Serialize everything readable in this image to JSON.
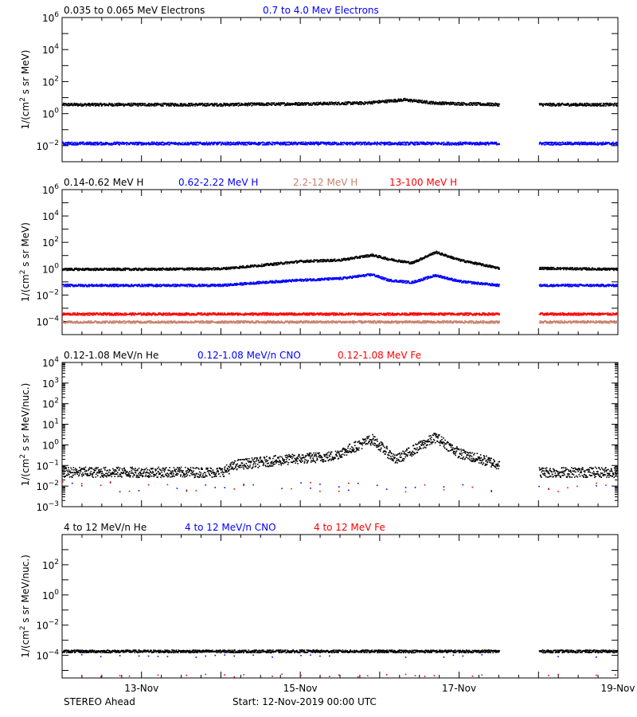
{
  "footer": {
    "mission": "STEREO Ahead",
    "start": "Start: 12-Nov-2019 00:00 UTC"
  },
  "x_axis": {
    "tick_labels": [
      "13-Nov",
      "15-Nov",
      "17-Nov",
      "19-Nov"
    ],
    "tick_days": [
      1,
      3,
      5,
      7
    ],
    "range_days": [
      0,
      7
    ],
    "data_gap_days": [
      5.5,
      6.0
    ]
  },
  "colors": {
    "black": "#000000",
    "blue": "#0000ff",
    "salmon": "#c8826e",
    "red": "#ff0000"
  },
  "chart_data": [
    {
      "type": "scatter",
      "ylabel": "1/(cm^2 s sr MeV)",
      "yscale": "log",
      "ylim_exp": [
        -3,
        6
      ],
      "ytick_exps": [
        -2,
        0,
        2,
        4,
        6
      ],
      "legend": [
        {
          "name": "0.035 to 0.065 MeV Electrons",
          "color": "#000000"
        },
        {
          "name": "0.7 to 4.0 Mev Electrons",
          "color": "#0000ff"
        }
      ],
      "series": [
        {
          "name": "0.035 to 0.065 MeV Electrons",
          "color": "#000000",
          "x": [
            0,
            1,
            2,
            3,
            3.8,
            4.3,
            4.7,
            5.5,
            6.0,
            7
          ],
          "y": [
            4,
            4,
            4,
            4.5,
            5,
            8,
            5,
            4,
            4,
            4
          ]
        },
        {
          "name": "0.7 to 4.0 Mev Electrons",
          "color": "#0000ff",
          "x": [
            0,
            1,
            2,
            3,
            4,
            5,
            5.5,
            6.0,
            7
          ],
          "y": [
            0.015,
            0.015,
            0.015,
            0.015,
            0.015,
            0.015,
            0.015,
            0.015,
            0.015
          ]
        }
      ]
    },
    {
      "type": "scatter",
      "ylabel": "1/(cm^2 s sr MeV)",
      "yscale": "log",
      "ylim_exp": [
        -5,
        6
      ],
      "ytick_exps": [
        -4,
        -2,
        0,
        2,
        4,
        6
      ],
      "legend": [
        {
          "name": "0.14-0.62 MeV H",
          "color": "#000000"
        },
        {
          "name": "0.62-2.22 MeV H",
          "color": "#0000ff"
        },
        {
          "name": "2.2-12 MeV H",
          "color": "#c8826e"
        },
        {
          "name": "13-100 MeV H",
          "color": "#ff0000"
        }
      ],
      "series": [
        {
          "name": "0.14-0.62 MeV H",
          "color": "#000000",
          "x": [
            0,
            1,
            2,
            2.5,
            3,
            3.5,
            3.9,
            4.1,
            4.4,
            4.7,
            5.0,
            5.5,
            6.0,
            7
          ],
          "y": [
            1.0,
            1.0,
            1.1,
            2.0,
            4.0,
            5.0,
            12,
            6,
            3,
            20,
            5,
            1.2,
            1.2,
            1.0
          ]
        },
        {
          "name": "0.62-2.22 MeV H",
          "color": "#0000ff",
          "x": [
            0,
            1,
            2,
            2.5,
            3,
            3.5,
            3.9,
            4.1,
            4.4,
            4.7,
            5.0,
            5.5,
            6.0,
            7
          ],
          "y": [
            0.06,
            0.06,
            0.06,
            0.1,
            0.15,
            0.2,
            0.4,
            0.15,
            0.1,
            0.35,
            0.12,
            0.06,
            0.06,
            0.06
          ]
        },
        {
          "name": "2.2-12 MeV H",
          "color": "#c8826e",
          "x": [
            0,
            1,
            2,
            3,
            4,
            5,
            5.5,
            6.0,
            7
          ],
          "y": [
            0.0001,
            0.0001,
            0.0001,
            0.0001,
            0.0001,
            0.0001,
            0.0001,
            0.0001,
            0.0001
          ]
        },
        {
          "name": "13-100 MeV H",
          "color": "#ff0000",
          "x": [
            0,
            1,
            2,
            3,
            4,
            5,
            5.5,
            6.0,
            7
          ],
          "y": [
            0.0004,
            0.0004,
            0.0004,
            0.0004,
            0.0004,
            0.0004,
            0.0004,
            0.0004,
            0.0004
          ]
        }
      ]
    },
    {
      "type": "scatter",
      "ylabel": "1/(cm^2 s sr MeV/nuc.)",
      "yscale": "log",
      "ylim_exp": [
        -3,
        4
      ],
      "ytick_exps": [
        -3,
        -2,
        -1,
        0,
        1,
        2,
        3,
        4
      ],
      "legend": [
        {
          "name": "0.12-1.08 MeV/n He",
          "color": "#000000"
        },
        {
          "name": "0.12-1.08 MeV/n CNO",
          "color": "#0000ff"
        },
        {
          "name": "0.12-1.08 MeV Fe",
          "color": "#ff0000"
        }
      ],
      "series": [
        {
          "name": "0.12-1.08 MeV/n He",
          "color": "#000000",
          "x": [
            0,
            1,
            2,
            2.2,
            2.8,
            3.4,
            3.9,
            4.2,
            4.7,
            5.0,
            5.5,
            6.0,
            7
          ],
          "y": [
            0.05,
            0.05,
            0.05,
            0.12,
            0.2,
            0.3,
            2.0,
            0.2,
            2.5,
            0.4,
            0.12,
            0.05,
            0.05
          ]
        },
        {
          "name": "0.12-1.08 MeV/n CNO",
          "color": "#0000ff",
          "x": [
            0,
            1,
            2,
            3,
            4,
            5,
            5.5,
            6.0,
            7
          ],
          "y": [
            0.01,
            0.01,
            0.01,
            0.01,
            0.01,
            0.01,
            0.01,
            0.01,
            0.01
          ]
        },
        {
          "name": "0.12-1.08 MeV Fe",
          "color": "#ff0000",
          "x": [
            0,
            1,
            2,
            3,
            4,
            5,
            5.5,
            6.0,
            7
          ],
          "y": [
            0.01,
            0.01,
            0.01,
            0.01,
            0.01,
            0.01,
            0.01,
            0.01,
            0.01
          ]
        }
      ]
    },
    {
      "type": "scatter",
      "ylabel": "1/(cm^2 s sr MeV/nuc.)",
      "yscale": "log",
      "ylim_exp": [
        -5.5,
        4
      ],
      "ytick_exps": [
        -4,
        -2,
        0,
        2
      ],
      "legend": [
        {
          "name": "4 to 12 MeV/n He",
          "color": "#000000"
        },
        {
          "name": "4 to 12 MeV/n CNO",
          "color": "#0000ff"
        },
        {
          "name": "4 to 12 MeV Fe",
          "color": "#ff0000"
        }
      ],
      "series": [
        {
          "name": "4 to 12 MeV/n He",
          "color": "#000000",
          "x": [
            0,
            1,
            2,
            3,
            4,
            5,
            5.5,
            6.0,
            7
          ],
          "y": [
            0.0002,
            0.0002,
            0.0002,
            0.0002,
            0.0002,
            0.0002,
            0.0002,
            0.0002,
            0.0002
          ]
        },
        {
          "name": "4 to 12 MeV/n CNO",
          "color": "#0000ff",
          "x": [
            0,
            1,
            2,
            3,
            4,
            5,
            5.5,
            6.0,
            7
          ],
          "y": [
            0.0001,
            0.0001,
            0.0001,
            0.0001,
            0.0001,
            0.0001,
            0.0001,
            0.0001,
            0.0001
          ]
        },
        {
          "name": "4 to 12 MeV Fe",
          "color": "#ff0000",
          "x": [
            0,
            1,
            2,
            3,
            4,
            5,
            5.5,
            6.0,
            7
          ],
          "y": [
            5e-06,
            5e-06,
            5e-06,
            5e-06,
            5e-06,
            5e-06,
            5e-06,
            5e-06,
            5e-06
          ]
        }
      ]
    }
  ]
}
